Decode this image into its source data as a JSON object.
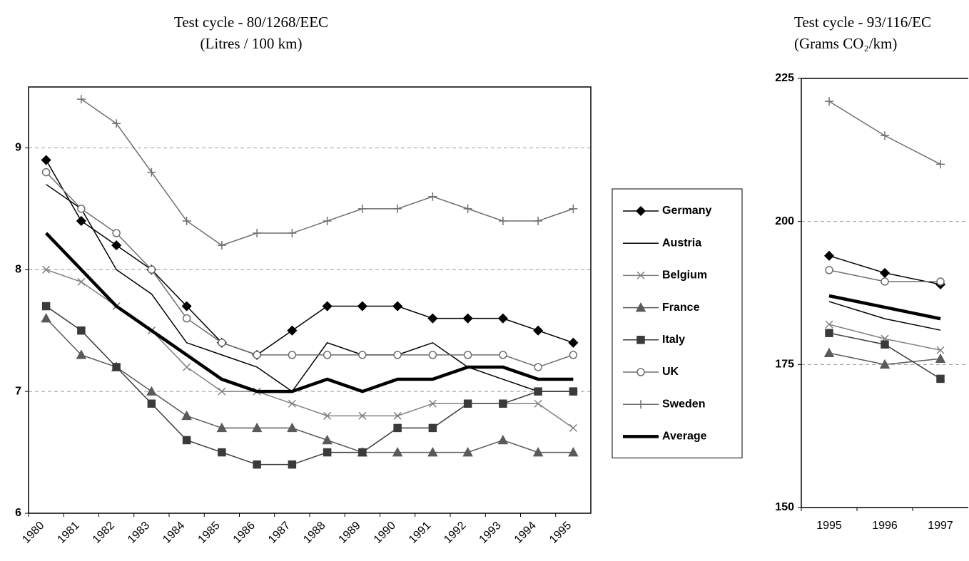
{
  "chart_data": [
    {
      "type": "line",
      "title": "Test cycle - 80/1268/EEC",
      "subtitle": "(Litres / 100 km)",
      "categories": [
        "1980",
        "1981",
        "1982",
        "1983",
        "1984",
        "1985",
        "1986",
        "1987",
        "1988",
        "1989",
        "1990",
        "1991",
        "1992",
        "1993",
        "1994",
        "1995"
      ],
      "ylim": [
        6,
        9.5
      ],
      "yticks": [
        6,
        7,
        8,
        9
      ],
      "grid": true,
      "legend": "right",
      "series": [
        {
          "name": "Germany",
          "color": "#000000",
          "marker": "diamond",
          "width": 1.5,
          "values": [
            8.9,
            8.4,
            8.2,
            8.0,
            7.7,
            7.4,
            7.3,
            7.5,
            7.7,
            7.7,
            7.7,
            7.6,
            7.6,
            7.6,
            7.5,
            7.4
          ]
        },
        {
          "name": "Austria",
          "color": "#000000",
          "marker": "none",
          "width": 1.5,
          "values": [
            8.7,
            8.5,
            8.0,
            7.8,
            7.4,
            7.3,
            7.2,
            7.0,
            7.4,
            7.3,
            7.3,
            7.4,
            7.2,
            7.1,
            7.0,
            7.0
          ]
        },
        {
          "name": "Belgium",
          "color": "#808080",
          "marker": "cross",
          "width": 1.5,
          "values": [
            8.0,
            7.9,
            7.7,
            7.5,
            7.2,
            7.0,
            7.0,
            6.9,
            6.8,
            6.8,
            6.8,
            6.9,
            6.9,
            6.9,
            6.9,
            6.7
          ]
        },
        {
          "name": "France",
          "color": "#5a5a5a",
          "marker": "triangle",
          "width": 1.5,
          "values": [
            7.6,
            7.3,
            7.2,
            7.0,
            6.8,
            6.7,
            6.7,
            6.7,
            6.6,
            6.5,
            6.5,
            6.5,
            6.5,
            6.6,
            6.5,
            6.5
          ]
        },
        {
          "name": "Italy",
          "color": "#3a3a3a",
          "marker": "square",
          "width": 1.5,
          "values": [
            7.7,
            7.5,
            7.2,
            6.9,
            6.6,
            6.5,
            6.4,
            6.4,
            6.5,
            6.5,
            6.7,
            6.7,
            6.9,
            6.9,
            7.0,
            7.0
          ]
        },
        {
          "name": "UK",
          "color": "#6e6e6e",
          "marker": "circle",
          "width": 1.5,
          "values": [
            8.8,
            8.5,
            8.3,
            8.0,
            7.6,
            7.4,
            7.3,
            7.3,
            7.3,
            7.3,
            7.3,
            7.3,
            7.3,
            7.3,
            7.2,
            7.3
          ]
        },
        {
          "name": "Sweden",
          "color": "#6e6e6e",
          "marker": "plus",
          "width": 1.5,
          "values": [
            null,
            9.4,
            9.2,
            8.8,
            8.4,
            8.2,
            8.3,
            8.3,
            8.4,
            8.5,
            8.5,
            8.6,
            8.5,
            8.4,
            8.4,
            8.5
          ]
        },
        {
          "name": "Average",
          "color": "#000000",
          "marker": "none",
          "width": 4.5,
          "values": [
            8.3,
            8.0,
            7.7,
            7.5,
            7.3,
            7.1,
            7.0,
            7.0,
            7.1,
            7.0,
            7.1,
            7.1,
            7.2,
            7.2,
            7.1,
            7.1
          ]
        }
      ]
    },
    {
      "type": "line",
      "title": "Test cycle - 93/116/EC",
      "subtitle": "(Grams CO₂/km)",
      "categories": [
        "1995",
        "1996",
        "1997"
      ],
      "ylim": [
        150,
        225
      ],
      "yticks": [
        150,
        175,
        200,
        225
      ],
      "grid": true,
      "series": [
        {
          "color": "#000000",
          "marker": "diamond",
          "width": 1.5,
          "values": [
            194,
            191,
            189
          ]
        },
        {
          "color": "#000000",
          "marker": "none",
          "width": 1.5,
          "values": [
            186,
            183,
            181
          ]
        },
        {
          "color": "#808080",
          "marker": "cross",
          "width": 1.5,
          "values": [
            182,
            179.5,
            177.5
          ]
        },
        {
          "color": "#5a5a5a",
          "marker": "triangle",
          "width": 1.5,
          "values": [
            177,
            175,
            176
          ]
        },
        {
          "color": "#3a3a3a",
          "marker": "square",
          "width": 1.5,
          "values": [
            180.5,
            178.5,
            172.5
          ]
        },
        {
          "color": "#6e6e6e",
          "marker": "circle",
          "width": 1.5,
          "values": [
            191.5,
            189.5,
            189.5
          ]
        },
        {
          "color": "#6e6e6e",
          "marker": "plus",
          "width": 1.5,
          "values": [
            221,
            215,
            210
          ]
        },
        {
          "color": "#000000",
          "marker": "none",
          "width": 4.5,
          "values": [
            187,
            185,
            183
          ]
        }
      ]
    }
  ]
}
